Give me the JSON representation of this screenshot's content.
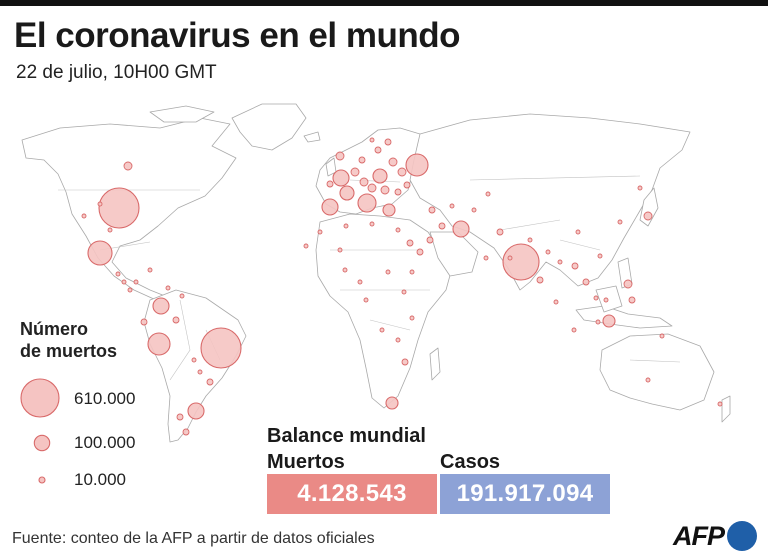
{
  "header": {
    "title": "El coronavirus en el mundo",
    "subtitle": "22 de julio, 10H00 GMT"
  },
  "legend": {
    "title_line1": "Número",
    "title_line2": "de muertos",
    "items": [
      {
        "label": "610.000",
        "value": 610000
      },
      {
        "label": "100.000",
        "value": 100000
      },
      {
        "label": "10.000",
        "value": 10000
      }
    ]
  },
  "balance": {
    "title": "Balance mundial",
    "deaths_label": "Muertos",
    "deaths_value": "4.128.543",
    "cases_label": "Casos",
    "cases_value": "191.917.094"
  },
  "footer": {
    "source": "Fuente: conteo de la AFP a partir de datos oficiales",
    "logo_text": "AFP"
  },
  "colors": {
    "bubble_fill": "#f5c4c2",
    "bubble_stroke": "#d96a6a",
    "land": "#ffffff",
    "border": "#b9b9b9",
    "deaths_box": "#ea8a86",
    "cases_box": "#8da2d6",
    "afp_blue": "#1f5fa8"
  }
}
